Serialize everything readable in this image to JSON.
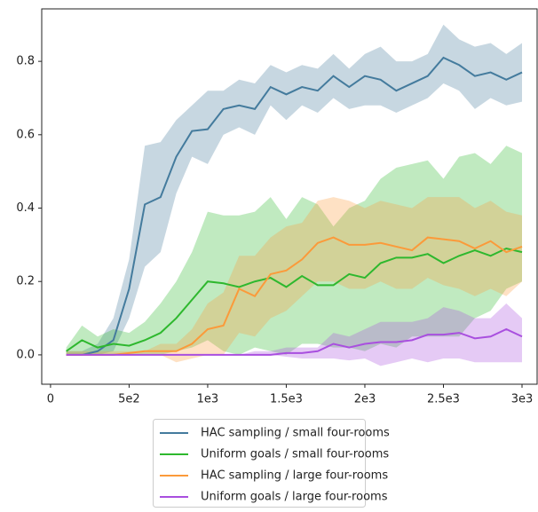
{
  "chart_data": {
    "type": "line",
    "x": [
      100,
      200,
      300,
      400,
      500,
      600,
      700,
      800,
      900,
      1000,
      1100,
      1200,
      1300,
      1400,
      1500,
      1600,
      1700,
      1800,
      1900,
      2000,
      2100,
      2200,
      2300,
      2400,
      2500,
      2600,
      2700,
      2800,
      2900,
      3000
    ],
    "series": [
      {
        "name": "HAC sampling / small four-rooms",
        "color": "#447b9d",
        "values": [
          0,
          0,
          0.01,
          0.04,
          0.18,
          0.41,
          0.43,
          0.54,
          0.61,
          0.615,
          0.67,
          0.68,
          0.67,
          0.73,
          0.71,
          0.73,
          0.72,
          0.76,
          0.73,
          0.76,
          0.75,
          0.72,
          0.74,
          0.76,
          0.81,
          0.79,
          0.76,
          0.77,
          0.75,
          0.77
        ],
        "lower": [
          0,
          0,
          0,
          0.01,
          0.1,
          0.24,
          0.28,
          0.44,
          0.54,
          0.52,
          0.6,
          0.62,
          0.6,
          0.68,
          0.64,
          0.68,
          0.66,
          0.7,
          0.67,
          0.68,
          0.68,
          0.66,
          0.68,
          0.7,
          0.74,
          0.72,
          0.67,
          0.7,
          0.68,
          0.69
        ],
        "upper": [
          0.01,
          0.01,
          0.03,
          0.1,
          0.26,
          0.57,
          0.58,
          0.64,
          0.68,
          0.72,
          0.72,
          0.75,
          0.74,
          0.79,
          0.77,
          0.79,
          0.78,
          0.82,
          0.78,
          0.82,
          0.84,
          0.8,
          0.8,
          0.82,
          0.9,
          0.86,
          0.84,
          0.85,
          0.82,
          0.85
        ]
      },
      {
        "name": "Uniform goals / small four-rooms",
        "color": "#2eb82e",
        "values": [
          0.01,
          0.04,
          0.02,
          0.03,
          0.025,
          0.04,
          0.06,
          0.1,
          0.15,
          0.2,
          0.195,
          0.185,
          0.2,
          0.21,
          0.185,
          0.215,
          0.19,
          0.19,
          0.22,
          0.21,
          0.25,
          0.265,
          0.265,
          0.275,
          0.25,
          0.27,
          0.285,
          0.27,
          0.29,
          0.28
        ],
        "lower": [
          0,
          0,
          0,
          0,
          0,
          0,
          0,
          0.01,
          0.02,
          0.04,
          0.01,
          0,
          0.02,
          0.01,
          0,
          0.03,
          0.03,
          0.02,
          0.02,
          0.01,
          0.03,
          0.02,
          0.05,
          0.05,
          0.05,
          0.05,
          0.1,
          0.12,
          0.18,
          0.2
        ],
        "upper": [
          0.02,
          0.08,
          0.05,
          0.07,
          0.06,
          0.09,
          0.14,
          0.2,
          0.28,
          0.39,
          0.38,
          0.38,
          0.39,
          0.43,
          0.37,
          0.43,
          0.41,
          0.35,
          0.4,
          0.42,
          0.48,
          0.51,
          0.52,
          0.53,
          0.48,
          0.54,
          0.55,
          0.52,
          0.57,
          0.55
        ]
      },
      {
        "name": "HAC sampling / large four-rooms",
        "color": "#fb9a3a",
        "values": [
          0,
          0,
          0,
          0,
          0.005,
          0.01,
          0.01,
          0.01,
          0.03,
          0.07,
          0.08,
          0.18,
          0.16,
          0.22,
          0.23,
          0.26,
          0.305,
          0.32,
          0.3,
          0.3,
          0.305,
          0.295,
          0.285,
          0.32,
          0.315,
          0.31,
          0.29,
          0.31,
          0.28,
          0.295
        ],
        "lower": [
          0,
          0,
          0,
          0,
          0,
          0,
          0,
          -0.02,
          -0.01,
          0,
          0,
          0.06,
          0.05,
          0.1,
          0.12,
          0.16,
          0.2,
          0.2,
          0.18,
          0.18,
          0.2,
          0.18,
          0.18,
          0.21,
          0.19,
          0.18,
          0.16,
          0.18,
          0.16,
          0.2
        ],
        "upper": [
          0.01,
          0.01,
          0.01,
          0.01,
          0.01,
          0.01,
          0.03,
          0.03,
          0.07,
          0.14,
          0.17,
          0.27,
          0.27,
          0.32,
          0.35,
          0.36,
          0.42,
          0.43,
          0.42,
          0.4,
          0.42,
          0.41,
          0.4,
          0.43,
          0.43,
          0.43,
          0.4,
          0.42,
          0.39,
          0.38
        ]
      },
      {
        "name": "Uniform goals / large four-rooms",
        "color": "#a94fdf",
        "values": [
          0,
          0,
          0,
          0,
          0,
          0,
          0,
          0,
          0,
          0,
          0,
          0,
          0,
          0,
          0.005,
          0.005,
          0.01,
          0.03,
          0.02,
          0.03,
          0.035,
          0.035,
          0.04,
          0.055,
          0.055,
          0.06,
          0.045,
          0.05,
          0.07,
          0.05
        ],
        "lower": [
          0,
          0,
          0,
          0,
          0,
          0,
          0,
          0,
          0,
          0,
          0,
          0,
          0,
          0,
          -0.005,
          -0.01,
          -0.01,
          -0.01,
          -0.015,
          -0.01,
          -0.03,
          -0.02,
          -0.01,
          -0.02,
          -0.01,
          -0.01,
          -0.02,
          -0.02,
          -0.02,
          -0.02
        ],
        "upper": [
          0,
          0,
          0,
          0,
          0,
          0,
          0,
          0,
          0,
          0,
          0,
          0,
          0.01,
          0.01,
          0.02,
          0.02,
          0.02,
          0.06,
          0.05,
          0.07,
          0.09,
          0.09,
          0.09,
          0.1,
          0.13,
          0.12,
          0.1,
          0.1,
          0.14,
          0.1
        ]
      }
    ],
    "xlim": [
      -56,
      3096
    ],
    "xticks": [
      0,
      {
        "value": 500,
        "label": "5e2"
      },
      {
        "value": 1000,
        "label": "1e3"
      },
      {
        "value": 1500,
        "label": "1.5e3"
      },
      {
        "value": 2000,
        "label": "2e3"
      },
      {
        "value": 2500,
        "label": "2.5e3"
      },
      {
        "value": 3000,
        "label": "3e3"
      }
    ],
    "ylim": [
      -0.08,
      0.943
    ],
    "yticks": [
      {
        "value": 0,
        "label": "0.0"
      },
      0.2,
      0.4,
      0.6,
      0.8
    ],
    "legend": "lower center outside"
  }
}
